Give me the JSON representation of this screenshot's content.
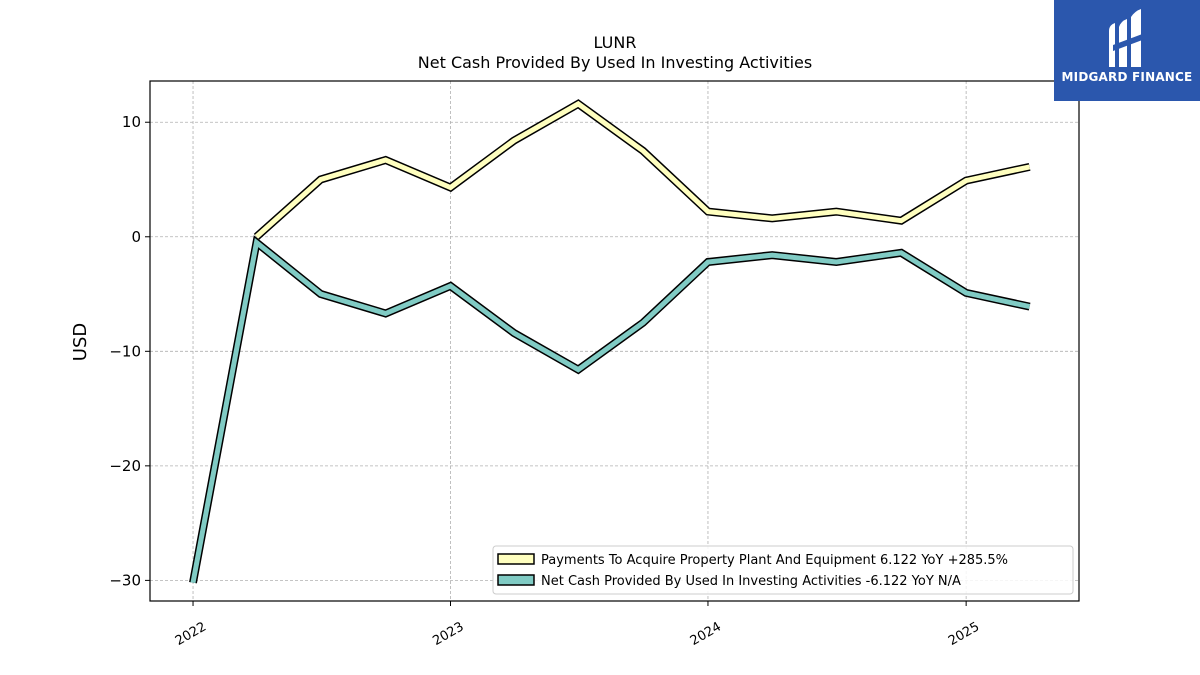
{
  "brand": {
    "name": "MIDGARD FINANCE",
    "color": "#2b57ad",
    "icon": "midgard-m-logo-icon"
  },
  "chart_data": {
    "type": "line",
    "title": "LUNR",
    "subtitle": "Net Cash Provided By Used In Investing Activities",
    "ylabel": "USD",
    "xlabel": "",
    "xlim": [
      "2021-11-01",
      "2025-06-10"
    ],
    "ylim": [
      -31.8,
      13.6
    ],
    "x_ticks": [
      "2022",
      "2023",
      "2024",
      "2025"
    ],
    "y_ticks": [
      10,
      0,
      -10,
      -20,
      -30
    ],
    "grid": true,
    "legend_position": "lower-right",
    "x": [
      "2022-01-01",
      "2022-04-01",
      "2022-07-01",
      "2022-10-01",
      "2023-01-01",
      "2023-04-01",
      "2023-07-01",
      "2023-10-01",
      "2024-01-01",
      "2024-04-01",
      "2024-07-01",
      "2024-10-01",
      "2025-01-01",
      "2025-04-01"
    ],
    "series": [
      {
        "name": "Payments To Acquire Property Plant And Equipment  6.122 YoY +285.5%",
        "color": "#ffffbf",
        "values": [
          null,
          0.0,
          5.0,
          6.7,
          4.3,
          8.4,
          11.6,
          7.5,
          2.2,
          1.6,
          2.2,
          1.4,
          4.9,
          6.1
        ]
      },
      {
        "name": "Net Cash Provided By Used In Investing Activities  -6.122 YoY N/A",
        "color": "#80cbc4",
        "values": [
          -30.2,
          -0.5,
          -5.0,
          -6.7,
          -4.3,
          -8.4,
          -11.6,
          -7.5,
          -2.2,
          -1.6,
          -2.2,
          -1.4,
          -4.9,
          -6.1
        ]
      }
    ]
  }
}
